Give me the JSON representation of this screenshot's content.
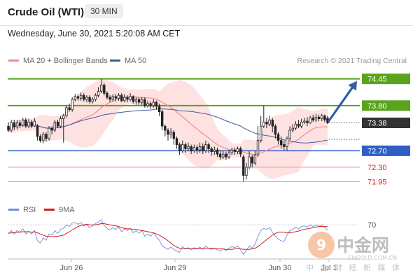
{
  "header": {
    "title": "Crude Oil (WTI)",
    "timeframe": "30 MIN",
    "datetime": "Wednesday, June 30, 2021 5:20:08 AM CET"
  },
  "legend": {
    "ma20_label": "MA 20 + Bollinger Bands",
    "ma50_label": "MA 50",
    "credit": "Research © 2021 Trading Central",
    "rsi_label": "RSI",
    "ma9_label": "9MA"
  },
  "colors": {
    "ma20": "#f08c8c",
    "ma50": "#3d5a9e",
    "band_fill": "#fdd8d8",
    "resistance": "#5aa31d",
    "pivot": "#2f5fc4",
    "support": "#f4a3a3",
    "arrow": "#2f5fa5",
    "last": "#333333"
  },
  "watermark": {
    "brand": "中金网",
    "tagline": "中 金 财 经 新 媒 体",
    "url": "CNGOLD.COM.CN"
  },
  "chart_data": {
    "type": "candlestick",
    "x_labels": [
      "Jun 26",
      "Jun 29",
      "Jun 30",
      "Jul 1"
    ],
    "price_ylim": [
      71.6,
      74.7
    ],
    "levels": [
      {
        "value": 74.45,
        "label": "74.45",
        "kind": "resistance"
      },
      {
        "value": 73.8,
        "label": "73.80",
        "kind": "resistance"
      },
      {
        "value": 73.38,
        "label": "73.38",
        "kind": "last"
      },
      {
        "value": 72.7,
        "label": "72.70",
        "kind": "pivot"
      },
      {
        "value": 72.3,
        "label": "72.30",
        "kind": "support"
      },
      {
        "value": 71.95,
        "label": "71.95",
        "kind": "support"
      }
    ],
    "candles": [
      {
        "c": 73.2,
        "o": 73.3,
        "h": 73.4,
        "l": 73.15
      },
      {
        "c": 73.38,
        "o": 73.2,
        "h": 73.45,
        "l": 73.15
      },
      {
        "c": 73.28,
        "o": 73.38,
        "h": 73.45,
        "l": 73.2
      },
      {
        "c": 73.38,
        "o": 73.28,
        "h": 73.45,
        "l": 73.22
      },
      {
        "c": 73.32,
        "o": 73.38,
        "h": 73.45,
        "l": 73.25
      },
      {
        "c": 73.45,
        "o": 73.32,
        "h": 73.5,
        "l": 73.28
      },
      {
        "c": 73.3,
        "o": 73.45,
        "h": 73.5,
        "l": 73.25
      },
      {
        "c": 73.4,
        "o": 73.3,
        "h": 73.48,
        "l": 73.25
      },
      {
        "c": 73.3,
        "o": 73.4,
        "h": 73.45,
        "l": 73.25
      },
      {
        "c": 73.42,
        "o": 73.3,
        "h": 73.5,
        "l": 73.28
      },
      {
        "c": 73.05,
        "o": 73.3,
        "h": 73.35,
        "l": 72.95
      },
      {
        "c": 72.95,
        "o": 73.05,
        "h": 73.1,
        "l": 72.9
      },
      {
        "c": 73.1,
        "o": 72.95,
        "h": 73.15,
        "l": 72.88
      },
      {
        "c": 73.0,
        "o": 73.1,
        "h": 73.15,
        "l": 72.92
      },
      {
        "c": 73.25,
        "o": 73.0,
        "h": 73.3,
        "l": 72.95
      },
      {
        "c": 73.2,
        "o": 73.25,
        "h": 73.3,
        "l": 73.1
      },
      {
        "c": 73.4,
        "o": 73.2,
        "h": 73.45,
        "l": 73.15
      },
      {
        "c": 73.3,
        "o": 73.4,
        "h": 73.45,
        "l": 73.25
      },
      {
        "c": 73.48,
        "o": 73.3,
        "h": 73.55,
        "l": 73.25
      },
      {
        "c": 73.55,
        "o": 73.48,
        "h": 73.6,
        "l": 72.9
      },
      {
        "c": 73.75,
        "o": 73.55,
        "h": 73.8,
        "l": 73.5
      },
      {
        "c": 73.7,
        "o": 73.75,
        "h": 73.85,
        "l": 73.65
      },
      {
        "c": 73.95,
        "o": 73.7,
        "h": 74.0,
        "l": 73.65
      },
      {
        "c": 74.02,
        "o": 73.95,
        "h": 74.08,
        "l": 73.9
      },
      {
        "c": 73.98,
        "o": 74.02,
        "h": 74.08,
        "l": 73.92
      },
      {
        "c": 74.05,
        "o": 73.98,
        "h": 74.12,
        "l": 73.92
      },
      {
        "c": 73.95,
        "o": 74.05,
        "h": 74.1,
        "l": 73.9
      },
      {
        "c": 74.0,
        "o": 73.95,
        "h": 74.05,
        "l": 73.88
      },
      {
        "c": 73.9,
        "o": 74.0,
        "h": 74.05,
        "l": 73.85
      },
      {
        "c": 73.95,
        "o": 73.9,
        "h": 74.0,
        "l": 73.85
      },
      {
        "c": 74.05,
        "o": 73.95,
        "h": 74.1,
        "l": 73.9
      },
      {
        "c": 74.15,
        "o": 74.05,
        "h": 74.25,
        "l": 74.0
      },
      {
        "c": 74.3,
        "o": 74.15,
        "h": 74.45,
        "l": 74.1
      },
      {
        "c": 74.1,
        "o": 74.3,
        "h": 74.35,
        "l": 74.05
      },
      {
        "c": 74.0,
        "o": 74.1,
        "h": 74.15,
        "l": 73.95
      },
      {
        "c": 73.95,
        "o": 74.0,
        "h": 74.05,
        "l": 73.88
      },
      {
        "c": 74.02,
        "o": 73.95,
        "h": 74.08,
        "l": 73.9
      },
      {
        "c": 73.98,
        "o": 74.02,
        "h": 74.08,
        "l": 73.9
      },
      {
        "c": 74.05,
        "o": 73.98,
        "h": 74.1,
        "l": 73.92
      },
      {
        "c": 73.92,
        "o": 74.05,
        "h": 74.1,
        "l": 73.88
      },
      {
        "c": 74.0,
        "o": 73.92,
        "h": 74.08,
        "l": 73.88
      },
      {
        "c": 73.95,
        "o": 74.0,
        "h": 74.05,
        "l": 73.88
      },
      {
        "c": 74.02,
        "o": 73.95,
        "h": 74.1,
        "l": 73.9
      },
      {
        "c": 73.9,
        "o": 74.02,
        "h": 74.05,
        "l": 73.85
      },
      {
        "c": 73.95,
        "o": 73.9,
        "h": 74.0,
        "l": 73.82
      },
      {
        "c": 73.88,
        "o": 73.95,
        "h": 74.0,
        "l": 73.82
      },
      {
        "c": 73.95,
        "o": 73.88,
        "h": 74.0,
        "l": 73.82
      },
      {
        "c": 73.8,
        "o": 73.95,
        "h": 74.0,
        "l": 73.75
      },
      {
        "c": 73.85,
        "o": 73.8,
        "h": 73.92,
        "l": 73.75
      },
      {
        "c": 73.8,
        "o": 73.85,
        "h": 73.9,
        "l": 73.72
      },
      {
        "c": 73.88,
        "o": 73.8,
        "h": 73.95,
        "l": 73.75
      },
      {
        "c": 73.78,
        "o": 73.88,
        "h": 73.92,
        "l": 73.7
      },
      {
        "c": 73.65,
        "o": 73.78,
        "h": 73.85,
        "l": 73.55
      },
      {
        "c": 73.3,
        "o": 73.65,
        "h": 73.7,
        "l": 73.2
      },
      {
        "c": 73.2,
        "o": 73.3,
        "h": 73.35,
        "l": 73.05
      },
      {
        "c": 73.1,
        "o": 73.2,
        "h": 73.25,
        "l": 72.95
      },
      {
        "c": 73.15,
        "o": 73.1,
        "h": 73.25,
        "l": 73.0
      },
      {
        "c": 73.0,
        "o": 73.15,
        "h": 73.2,
        "l": 72.85
      },
      {
        "c": 72.85,
        "o": 73.0,
        "h": 73.05,
        "l": 72.75
      },
      {
        "c": 72.7,
        "o": 72.85,
        "h": 72.9,
        "l": 72.6
      },
      {
        "c": 72.85,
        "o": 72.7,
        "h": 72.95,
        "l": 72.65
      },
      {
        "c": 72.75,
        "o": 72.85,
        "h": 72.9,
        "l": 72.65
      },
      {
        "c": 72.8,
        "o": 72.75,
        "h": 72.9,
        "l": 72.7
      },
      {
        "c": 72.7,
        "o": 72.8,
        "h": 72.85,
        "l": 72.62
      },
      {
        "c": 72.78,
        "o": 72.7,
        "h": 72.85,
        "l": 72.65
      },
      {
        "c": 72.72,
        "o": 72.78,
        "h": 72.85,
        "l": 72.62
      },
      {
        "c": 72.8,
        "o": 72.72,
        "h": 72.9,
        "l": 72.65
      },
      {
        "c": 72.7,
        "o": 72.8,
        "h": 72.88,
        "l": 72.62
      },
      {
        "c": 72.85,
        "o": 72.7,
        "h": 72.95,
        "l": 72.65
      },
      {
        "c": 72.75,
        "o": 72.85,
        "h": 72.9,
        "l": 72.65
      },
      {
        "c": 72.68,
        "o": 72.75,
        "h": 72.8,
        "l": 72.58
      },
      {
        "c": 72.72,
        "o": 72.68,
        "h": 72.8,
        "l": 72.6
      },
      {
        "c": 72.62,
        "o": 72.72,
        "h": 72.78,
        "l": 72.55
      },
      {
        "c": 72.55,
        "o": 72.62,
        "h": 72.7,
        "l": 72.48
      },
      {
        "c": 72.62,
        "o": 72.55,
        "h": 72.7,
        "l": 72.5
      },
      {
        "c": 72.55,
        "o": 72.62,
        "h": 72.68,
        "l": 72.48
      },
      {
        "c": 72.65,
        "o": 72.55,
        "h": 72.72,
        "l": 72.5
      },
      {
        "c": 72.72,
        "o": 72.65,
        "h": 72.78,
        "l": 72.6
      },
      {
        "c": 72.68,
        "o": 72.72,
        "h": 72.78,
        "l": 72.6
      },
      {
        "c": 72.75,
        "o": 72.68,
        "h": 72.8,
        "l": 72.62
      },
      {
        "c": 72.62,
        "o": 72.75,
        "h": 72.8,
        "l": 72.55
      },
      {
        "c": 72.1,
        "o": 72.55,
        "h": 72.6,
        "l": 71.95
      },
      {
        "c": 72.3,
        "o": 72.1,
        "h": 72.4,
        "l": 72.0
      },
      {
        "c": 72.55,
        "o": 72.3,
        "h": 72.7,
        "l": 72.25
      },
      {
        "c": 72.4,
        "o": 72.55,
        "h": 72.6,
        "l": 72.3
      },
      {
        "c": 72.6,
        "o": 72.4,
        "h": 72.7,
        "l": 72.35
      },
      {
        "c": 72.95,
        "o": 72.6,
        "h": 73.3,
        "l": 72.55
      },
      {
        "c": 73.3,
        "o": 72.95,
        "h": 73.55,
        "l": 72.9
      },
      {
        "c": 73.4,
        "o": 73.3,
        "h": 73.8,
        "l": 73.25
      },
      {
        "c": 73.35,
        "o": 73.4,
        "h": 73.5,
        "l": 73.25
      },
      {
        "c": 73.45,
        "o": 73.35,
        "h": 73.55,
        "l": 73.3
      },
      {
        "c": 73.3,
        "o": 73.45,
        "h": 73.5,
        "l": 73.15
      },
      {
        "c": 73.1,
        "o": 73.3,
        "h": 73.35,
        "l": 73.0
      },
      {
        "c": 72.95,
        "o": 73.1,
        "h": 73.15,
        "l": 72.85
      },
      {
        "c": 72.85,
        "o": 72.95,
        "h": 73.05,
        "l": 72.75
      },
      {
        "c": 72.8,
        "o": 72.85,
        "h": 72.95,
        "l": 72.72
      },
      {
        "c": 73.0,
        "o": 72.8,
        "h": 73.05,
        "l": 72.7
      },
      {
        "c": 73.2,
        "o": 73.0,
        "h": 73.3,
        "l": 72.95
      },
      {
        "c": 73.25,
        "o": 73.2,
        "h": 73.35,
        "l": 73.15
      },
      {
        "c": 73.35,
        "o": 73.25,
        "h": 73.42,
        "l": 73.2
      },
      {
        "c": 73.3,
        "o": 73.35,
        "h": 73.45,
        "l": 73.25
      },
      {
        "c": 73.4,
        "o": 73.3,
        "h": 73.48,
        "l": 73.25
      },
      {
        "c": 73.42,
        "o": 73.4,
        "h": 73.5,
        "l": 73.35
      },
      {
        "c": 73.38,
        "o": 73.42,
        "h": 73.52,
        "l": 73.3
      },
      {
        "c": 73.5,
        "o": 73.38,
        "h": 73.55,
        "l": 73.35
      },
      {
        "c": 73.45,
        "o": 73.5,
        "h": 73.58,
        "l": 73.4
      },
      {
        "c": 73.52,
        "o": 73.45,
        "h": 73.6,
        "l": 73.4
      },
      {
        "c": 73.48,
        "o": 73.52,
        "h": 73.58,
        "l": 73.42
      },
      {
        "c": 73.55,
        "o": 73.48,
        "h": 73.6,
        "l": 73.42
      },
      {
        "c": 73.45,
        "o": 73.55,
        "h": 73.58,
        "l": 73.4
      },
      {
        "c": 73.38,
        "o": 73.5,
        "h": 73.55,
        "l": 73.35
      }
    ],
    "rsi_levels": [
      70
    ],
    "rsi_ylim": [
      20,
      80
    ],
    "rsi": [
      55,
      60,
      54,
      60,
      57,
      63,
      54,
      59,
      54,
      60,
      42,
      38,
      47,
      43,
      54,
      52,
      60,
      55,
      62,
      64,
      70,
      67,
      73,
      74,
      71,
      74,
      68,
      71,
      65,
      68,
      72,
      75,
      79,
      69,
      64,
      61,
      65,
      62,
      66,
      58,
      63,
      60,
      64,
      56,
      60,
      55,
      60,
      50,
      54,
      50,
      56,
      49,
      43,
      33,
      30,
      27,
      31,
      27,
      24,
      22,
      32,
      28,
      30,
      26,
      30,
      28,
      31,
      27,
      33,
      29,
      27,
      29,
      26,
      24,
      28,
      25,
      29,
      32,
      30,
      33,
      27,
      18,
      25,
      33,
      29,
      36,
      50,
      60,
      64,
      62,
      65,
      57,
      50,
      45,
      42,
      41,
      52,
      60,
      62,
      66,
      63,
      67,
      68,
      66,
      70,
      67,
      70,
      67,
      70,
      65,
      61
    ],
    "rsi_ma9": [
      55,
      56,
      56,
      57,
      57,
      58,
      58,
      58,
      57,
      58,
      56,
      54,
      52,
      50,
      50,
      49,
      50,
      50,
      51,
      52,
      55,
      58,
      61,
      64,
      67,
      69,
      70,
      71,
      70,
      70,
      70,
      71,
      72,
      72,
      71,
      70,
      69,
      68,
      67,
      65,
      64,
      63,
      63,
      62,
      62,
      61,
      60,
      59,
      58,
      57,
      56,
      54,
      52,
      49,
      46,
      42,
      38,
      34,
      31,
      29,
      28,
      28,
      28,
      28,
      28,
      28,
      28,
      28,
      29,
      29,
      29,
      29,
      28,
      28,
      28,
      27,
      27,
      27,
      28,
      28,
      28,
      27,
      27,
      27,
      28,
      29,
      32,
      36,
      40,
      44,
      48,
      52,
      55,
      57,
      57,
      57,
      56,
      56,
      57,
      58,
      59,
      61,
      62,
      63,
      64,
      65,
      66,
      67,
      67,
      67,
      67
    ]
  }
}
